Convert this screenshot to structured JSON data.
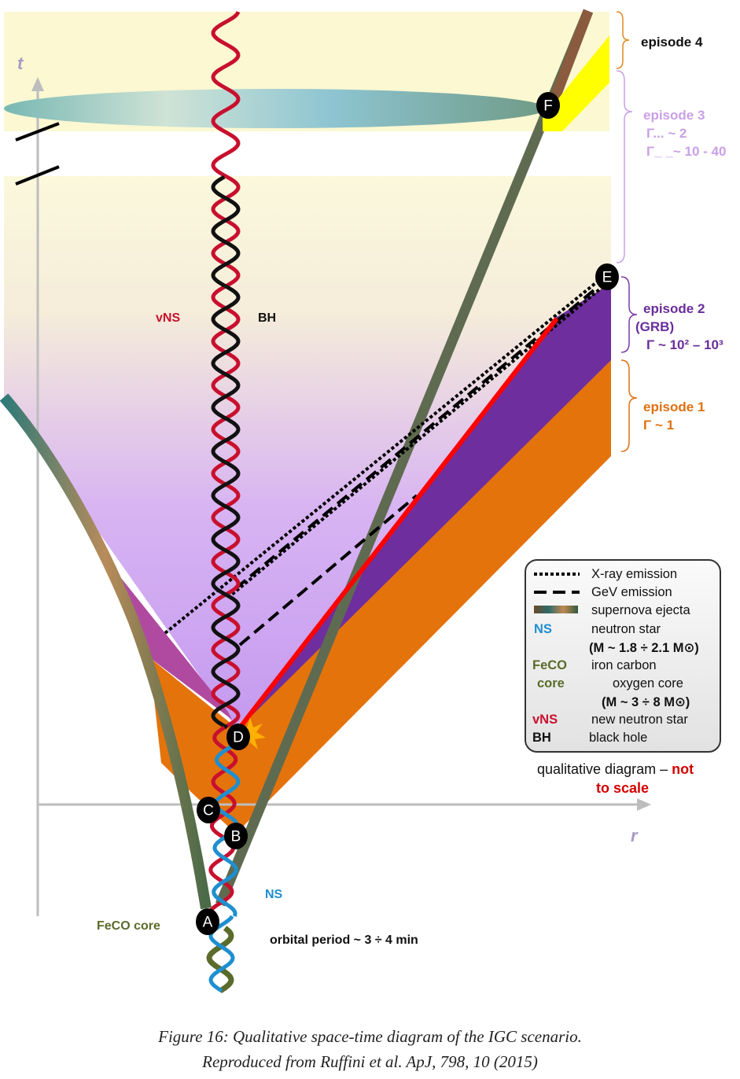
{
  "axes": {
    "t_label": "t",
    "r_label": "r"
  },
  "nodes": {
    "A": "A",
    "B": "B",
    "C": "C",
    "D": "D",
    "E": "E",
    "F": "F"
  },
  "labels": {
    "vns": "vNS",
    "bh": "BH",
    "ns": "NS",
    "feco_core": "FeCO core",
    "orbital_period": "orbital period ~ 3 ÷ 4 min"
  },
  "episodes": {
    "ep4": {
      "title": "episode 4"
    },
    "ep3": {
      "title": "episode 3",
      "line1": "Γ... ~ 2",
      "line2": "Γ_ _~ 10 - 40"
    },
    "ep2": {
      "title": "episode 2",
      "sub": "(GRB)",
      "gamma": "Γ ~ 10² – 10³"
    },
    "ep1": {
      "title": "episode 1",
      "gamma": "Γ ~ 1"
    }
  },
  "legend": {
    "xray": "X-ray emission",
    "gev": "GeV emission",
    "ejecta": "supernova ejecta",
    "ns_key": "NS",
    "ns_desc": "neutron star",
    "ns_mass": "(M ~ 1.8 ÷ 2.1 M⊙)",
    "feco_key1": "FeCO",
    "feco_key2": "core",
    "feco_desc1": "iron carbon",
    "feco_desc2": "oxygen core",
    "feco_mass": "(M ~ 3 ÷ 8 M⊙)",
    "vns_key": "vNS",
    "vns_desc": "new  neutron star",
    "bh_key": "BH",
    "bh_desc": "black hole"
  },
  "note": {
    "part1": "qualitative diagram – ",
    "part2": "not",
    "part3": "to scale"
  },
  "caption": {
    "line1": "Figure 16: Qualitative space-time diagram of the IGC scenario.",
    "line2": "Reproduced from Ruffini et al. ApJ, 798, 10 (2015)"
  },
  "colors": {
    "vns_red": "#c8102e",
    "bh_black": "#111111",
    "ns_blue": "#1e8fd0",
    "feco_green": "#5a6b2a",
    "ep4_black": "#111111",
    "ep3_lilac": "#c9a0e6",
    "ep2_purple": "#6a2d9a",
    "ep1_orange": "#e07010",
    "grb_red": "#ff0000",
    "note_red": "#d40000"
  }
}
